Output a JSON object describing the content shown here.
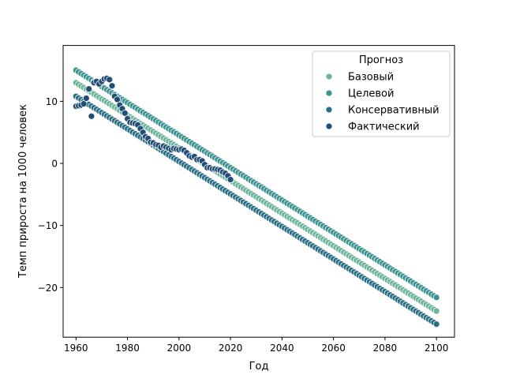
{
  "chart_data": {
    "type": "scatter",
    "title": "",
    "xlabel": "Год",
    "ylabel": "Темп прироста на 1000 человек",
    "xlim": [
      1955,
      2107
    ],
    "ylim": [
      -28,
      19
    ],
    "xticks": [
      1960,
      1980,
      2000,
      2020,
      2040,
      2060,
      2080,
      2100
    ],
    "xtick_labels": [
      "1960",
      "1980",
      "2000",
      "2020",
      "2040",
      "2060",
      "2080",
      "2100"
    ],
    "yticks": [
      -20,
      -10,
      0,
      10
    ],
    "ytick_labels": [
      "−20",
      "−10",
      "0",
      "10"
    ],
    "grid": false,
    "legend": {
      "title": "Прогноз",
      "placement": "top-right",
      "entries": [
        "Базовый",
        "Целевой",
        "Консервативный",
        "Фактический"
      ]
    },
    "series": [
      {
        "name": "Базовый",
        "color": "#6cb49c",
        "x_range": [
          1960,
          2100
        ],
        "step": 1,
        "y_start": 13.0,
        "y_end": -23.8
      },
      {
        "name": "Целевой",
        "color": "#3d9390",
        "x_range": [
          1960,
          2100
        ],
        "step": 1,
        "y_start": 15.0,
        "y_end": -21.6
      },
      {
        "name": "Консервативный",
        "color": "#2b6f86",
        "x_range": [
          1960,
          2100
        ],
        "step": 1,
        "y_start": 10.8,
        "y_end": -25.9
      },
      {
        "name": "Фактический",
        "color": "#224e76",
        "x": [
          1960,
          1961,
          1962,
          1963,
          1964,
          1965,
          1966,
          1967,
          1968,
          1969,
          1970,
          1971,
          1972,
          1973,
          1974,
          1975,
          1976,
          1977,
          1978,
          1979,
          1980,
          1981,
          1982,
          1983,
          1984,
          1985,
          1986,
          1987,
          1988,
          1989,
          1990,
          1991,
          1992,
          1993,
          1994,
          1995,
          1996,
          1997,
          1998,
          1999,
          2000,
          2001,
          2002,
          2003,
          2004,
          2005,
          2006,
          2007,
          2008,
          2009,
          2010,
          2011,
          2012,
          2013,
          2014,
          2015,
          2016,
          2017,
          2018,
          2019,
          2020
        ],
        "y": [
          9.2,
          9.3,
          9.4,
          9.6,
          10.5,
          12.0,
          7.6,
          13.0,
          13.2,
          12.8,
          13.2,
          13.6,
          13.7,
          13.5,
          12.5,
          10.8,
          10.3,
          9.4,
          8.8,
          8.1,
          7.2,
          6.6,
          6.5,
          6.4,
          6.2,
          5.6,
          5.0,
          4.3,
          4.0,
          3.4,
          3.3,
          3.0,
          2.9,
          2.6,
          2.8,
          2.6,
          2.4,
          2.2,
          2.4,
          2.3,
          2.2,
          2.3,
          2.1,
          1.7,
          1.2,
          1.0,
          1.1,
          0.6,
          0.6,
          0.4,
          -0.2,
          -0.7,
          -0.7,
          -0.9,
          -0.9,
          -1.0,
          -1.1,
          -1.4,
          -1.6,
          -2.0,
          -2.6
        ]
      }
    ]
  }
}
